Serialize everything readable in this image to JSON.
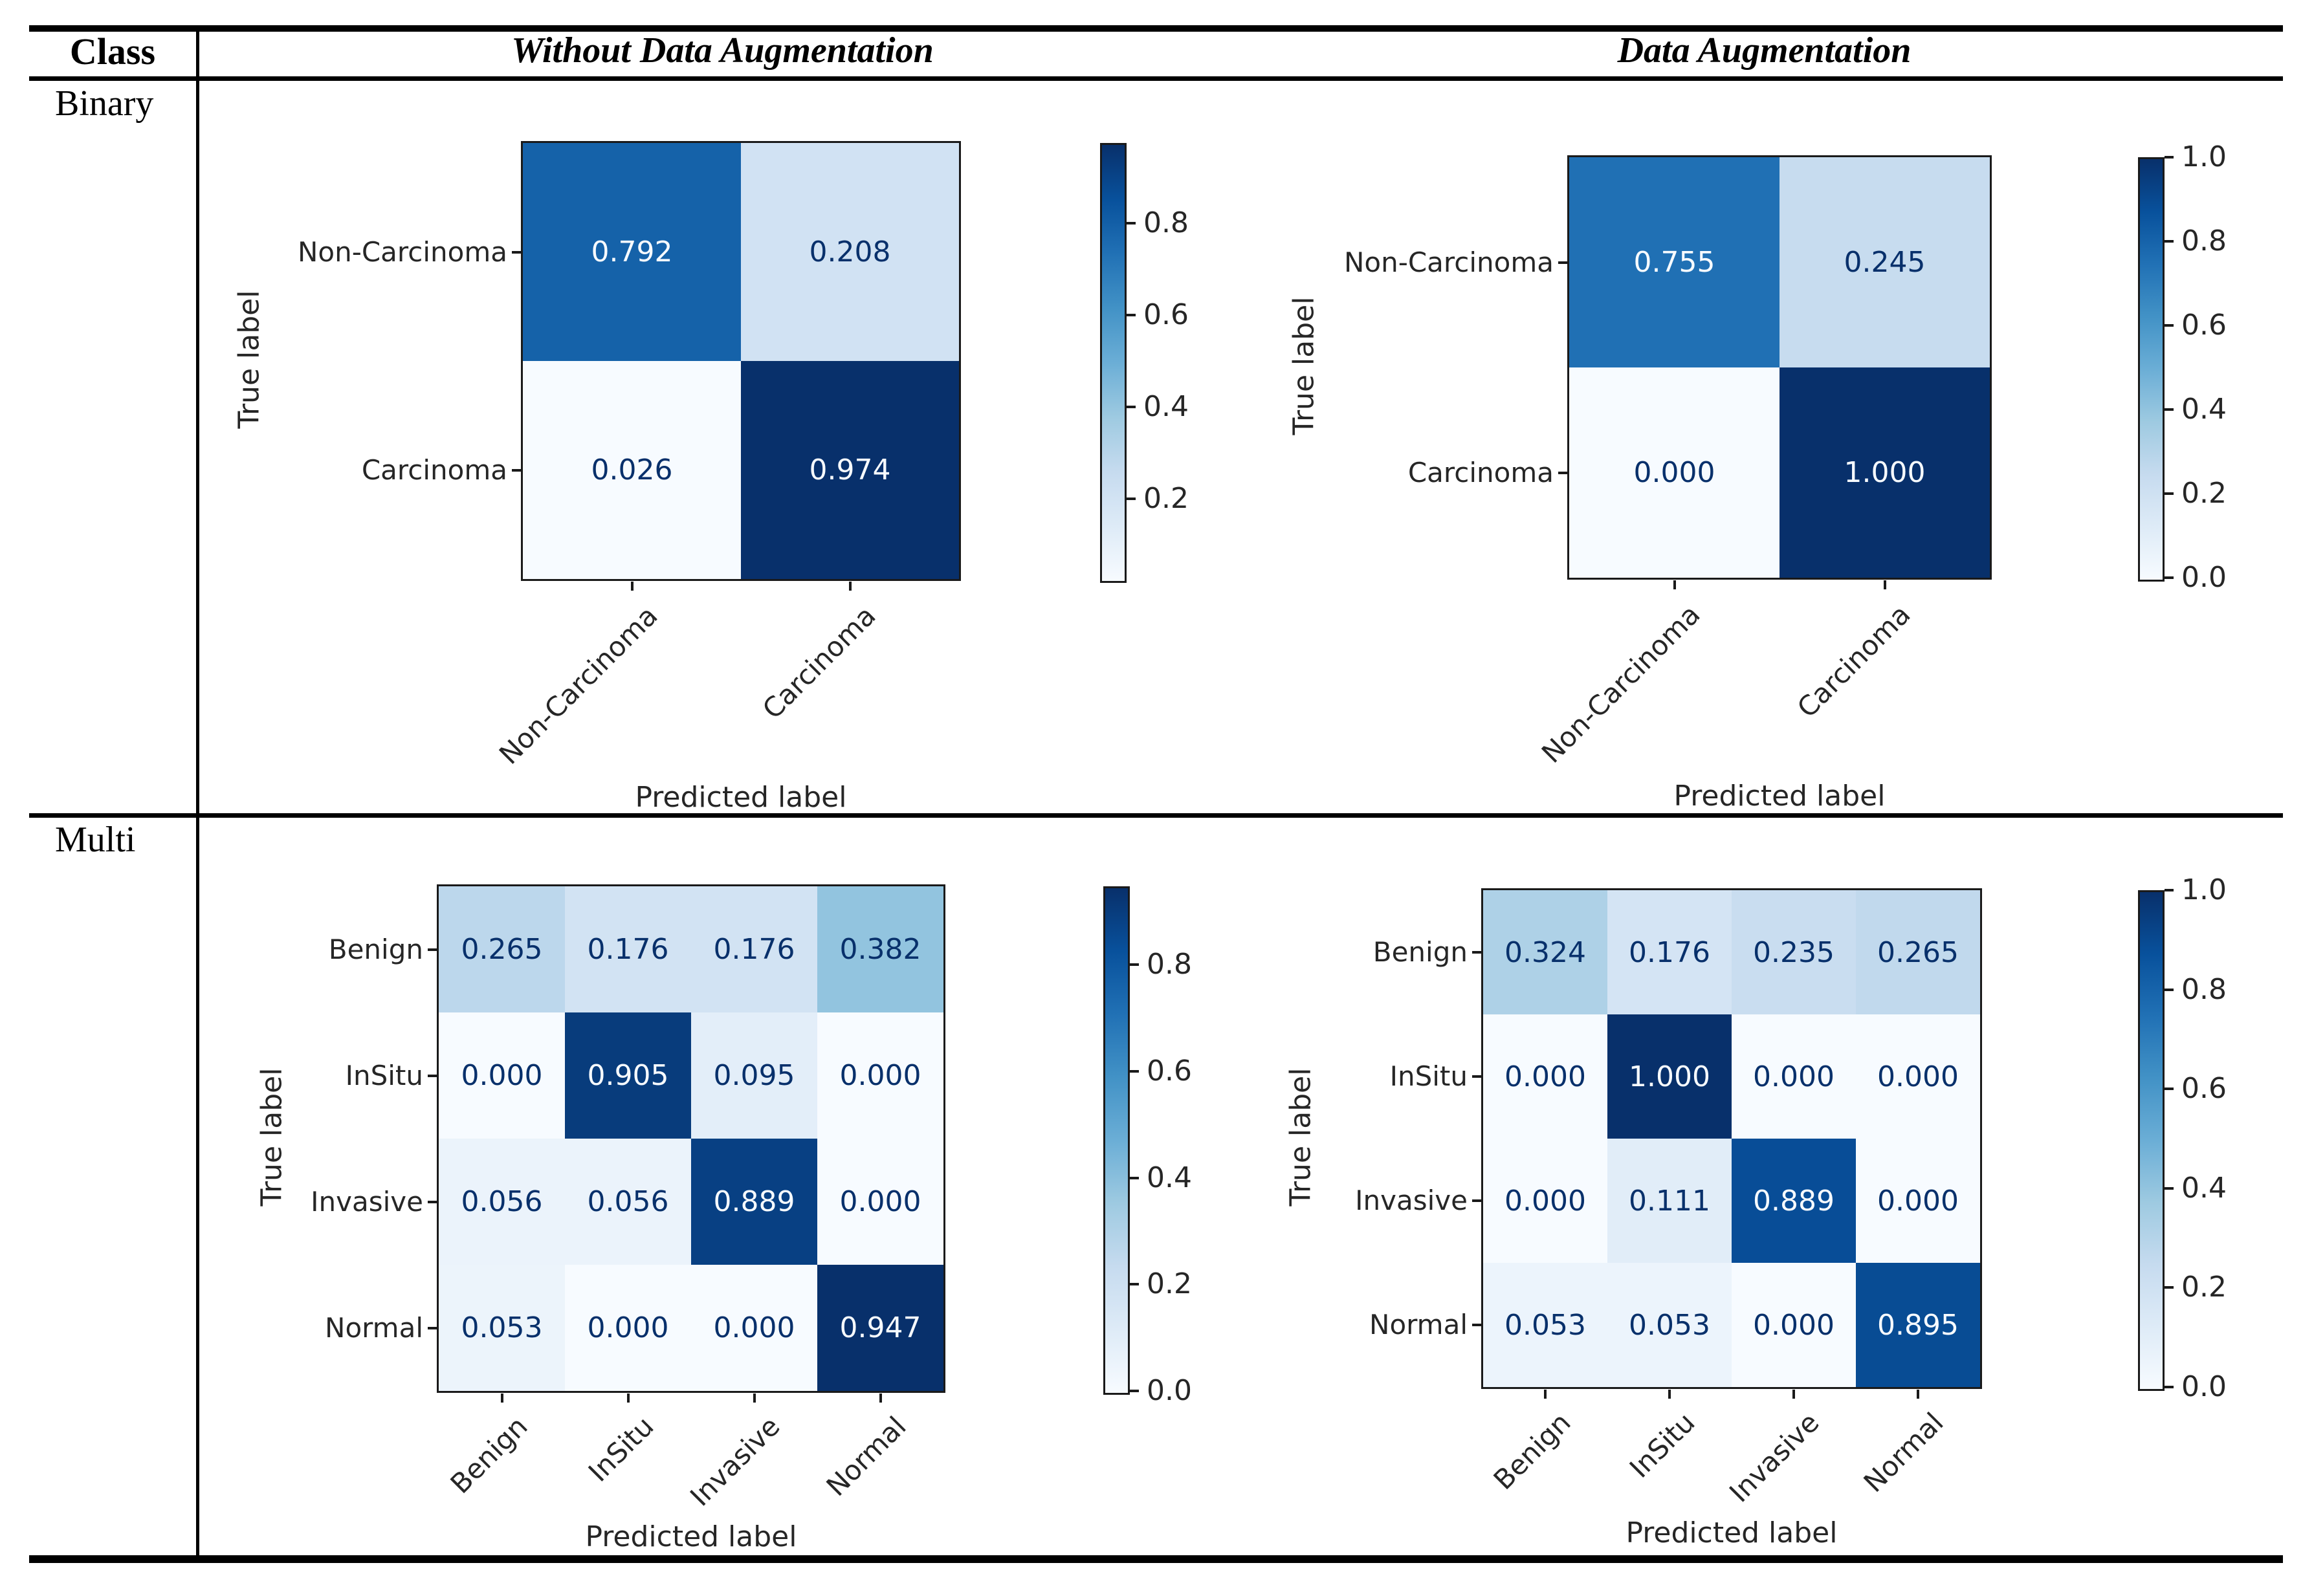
{
  "page": {
    "background": "#ffffff"
  },
  "table": {
    "columns": [
      {
        "label": "Class"
      },
      {
        "label": "Without Data Augmentation"
      },
      {
        "label": "Data Augmentation"
      }
    ],
    "rows": [
      {
        "label": "Binary"
      },
      {
        "label": "Multi"
      }
    ]
  },
  "colormap": {
    "name": "Blues",
    "stops": [
      "#f7fbff",
      "#deebf7",
      "#c6dbef",
      "#9ecae1",
      "#6baed6",
      "#4292c6",
      "#2171b5",
      "#08519c",
      "#08306b"
    ],
    "text_light": "#f7fbff",
    "text_dark": "#08306b"
  },
  "chart_data": [
    {
      "id": "binary-without-augmentation",
      "type": "heatmap",
      "row_group": "Binary",
      "column_group": "Without Data Augmentation",
      "xlabel": "Predicted label",
      "ylabel": "True label",
      "categories": [
        "Non-Carcinoma",
        "Carcinoma"
      ],
      "matrix": [
        [
          0.792,
          0.208
        ],
        [
          0.026,
          0.974
        ]
      ],
      "vmin": 0.026,
      "vmax": 0.974,
      "colorbar_ticks": [
        0.8,
        0.6,
        0.4,
        0.2
      ]
    },
    {
      "id": "binary-data-augmentation",
      "type": "heatmap",
      "row_group": "Binary",
      "column_group": "Data Augmentation",
      "xlabel": "Predicted label",
      "ylabel": "True label",
      "categories": [
        "Non-Carcinoma",
        "Carcinoma"
      ],
      "matrix": [
        [
          0.755,
          0.245
        ],
        [
          0.0,
          1.0
        ]
      ],
      "vmin": 0.0,
      "vmax": 1.0,
      "colorbar_ticks": [
        1.0,
        0.8,
        0.6,
        0.4,
        0.2,
        0.0
      ]
    },
    {
      "id": "multi-without-augmentation",
      "type": "heatmap",
      "row_group": "Multi",
      "column_group": "Without Data Augmentation",
      "xlabel": "Predicted label",
      "ylabel": "True label",
      "categories": [
        "Benign",
        "InSitu",
        "Invasive",
        "Normal"
      ],
      "matrix": [
        [
          0.265,
          0.176,
          0.176,
          0.382
        ],
        [
          0.0,
          0.905,
          0.095,
          0.0
        ],
        [
          0.056,
          0.056,
          0.889,
          0.0
        ],
        [
          0.053,
          0.0,
          0.0,
          0.947
        ]
      ],
      "vmin": 0.0,
      "vmax": 0.947,
      "colorbar_ticks": [
        0.8,
        0.6,
        0.4,
        0.2,
        0.0
      ]
    },
    {
      "id": "multi-data-augmentation",
      "type": "heatmap",
      "row_group": "Multi",
      "column_group": "Data Augmentation",
      "xlabel": "Predicted label",
      "ylabel": "True label",
      "categories": [
        "Benign",
        "InSitu",
        "Invasive",
        "Normal"
      ],
      "matrix": [
        [
          0.324,
          0.176,
          0.235,
          0.265
        ],
        [
          0.0,
          1.0,
          0.0,
          0.0
        ],
        [
          0.0,
          0.111,
          0.889,
          0.0
        ],
        [
          0.053,
          0.053,
          0.0,
          0.895
        ]
      ],
      "vmin": 0.0,
      "vmax": 1.0,
      "colorbar_ticks": [
        1.0,
        0.8,
        0.6,
        0.4,
        0.2,
        0.0
      ]
    }
  ]
}
